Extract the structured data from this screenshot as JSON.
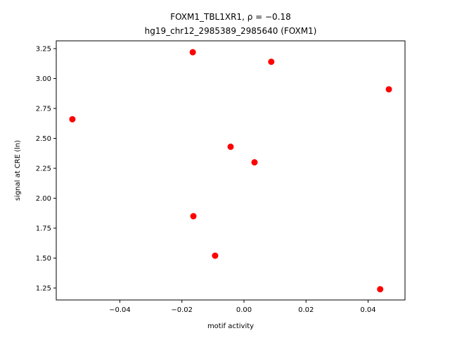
{
  "chart_data": {
    "type": "scatter",
    "title": "FOXM1_TBL1XR1, ρ = −0.18",
    "subtitle": "hg19_chr12_2985389_2985640 (FOXM1)",
    "x_label": "motif activity",
    "y_label": "signal at CRE (ln)",
    "color": "#ff0000",
    "x": [
      -0.0553,
      -0.0165,
      0.0088,
      0.0467,
      -0.0043,
      0.0034,
      -0.0163,
      -0.0093,
      0.0439
    ],
    "values": [
      2.66,
      3.22,
      3.14,
      2.91,
      2.43,
      2.3,
      1.85,
      1.52,
      1.24
    ],
    "xlim": [
      -0.0605,
      0.0519
    ],
    "ylim": [
      1.15,
      3.315
    ],
    "xticks": [
      {
        "value": -0.04,
        "label": "−0.04"
      },
      {
        "value": -0.02,
        "label": "−0.02"
      },
      {
        "value": 0,
        "label": "0.00"
      },
      0.02,
      0.04
    ],
    "yticks": [
      {
        "value": 1.25,
        "label": "1.25"
      },
      {
        "value": 1.5,
        "label": "1.50"
      },
      {
        "value": 1.75,
        "label": "1.75"
      },
      {
        "value": 2,
        "label": "2.00"
      },
      {
        "value": 2.25,
        "label": "2.25"
      },
      {
        "value": 2.5,
        "label": "2.50"
      },
      {
        "value": 2.75,
        "label": "2.75"
      },
      {
        "value": 3,
        "label": "3.00"
      },
      {
        "value": 3.25,
        "label": "3.25"
      }
    ]
  }
}
